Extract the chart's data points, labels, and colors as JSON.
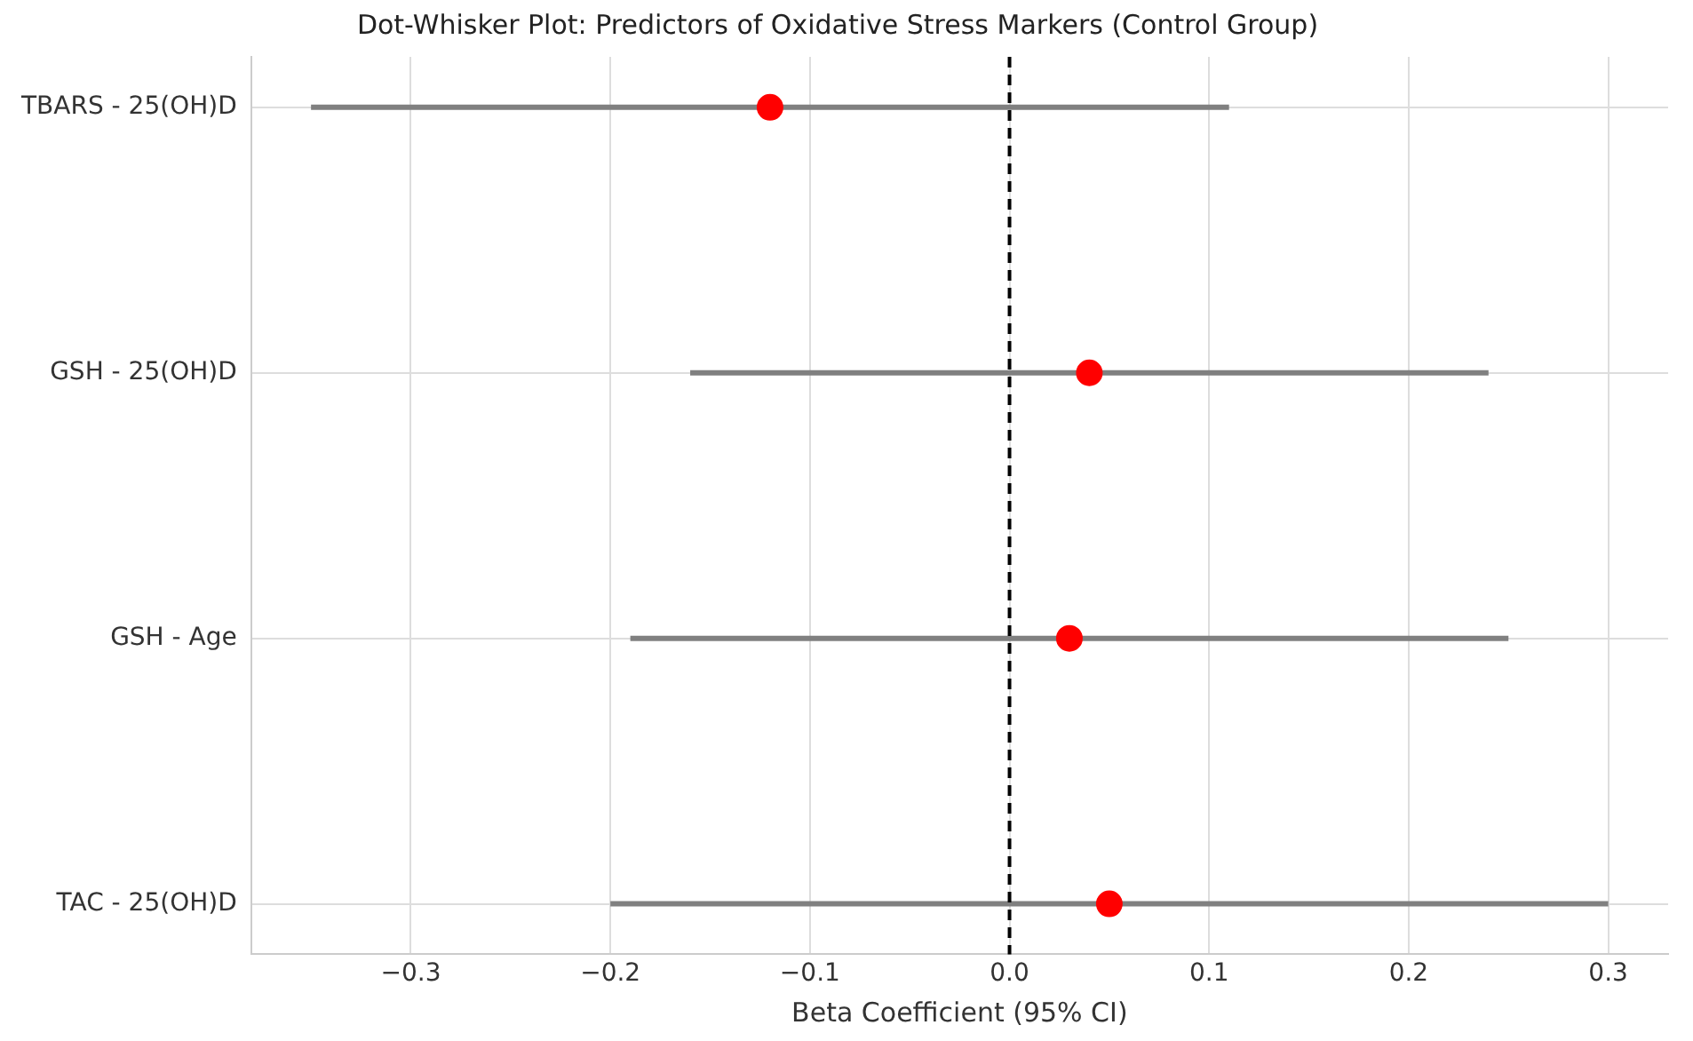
{
  "chart_data": {
    "type": "scatter",
    "orientation": "horizontal",
    "title": "Dot-Whisker Plot: Predictors of Oxidative Stress Markers (Control Group)",
    "xlabel": "Beta Coefficient (95% CI)",
    "categories": [
      "TBARS - 25(OH)D",
      "GSH - 25(OH)D",
      "GSH - Age",
      "TAC - 25(OH)D"
    ],
    "series": [
      {
        "color": "#ff0000",
        "values": [
          -0.12,
          0.04,
          0.03,
          0.05
        ],
        "errors": [
          [
            -0.35,
            0.11
          ],
          [
            -0.16,
            0.24
          ],
          [
            -0.19,
            0.25
          ],
          [
            -0.2,
            0.3
          ]
        ]
      }
    ],
    "xlim": [
      -0.38,
      0.33
    ],
    "xticks": [
      {
        "value": -0.3,
        "label": "−0.3"
      },
      {
        "value": -0.2,
        "label": "−0.2"
      },
      {
        "value": -0.1,
        "label": "−0.1"
      },
      {
        "value": 0,
        "label": "0.0"
      },
      {
        "value": 0.1,
        "label": "0.1"
      },
      {
        "value": 0.2,
        "label": "0.2"
      },
      {
        "value": 0.3,
        "label": "0.3"
      }
    ],
    "ref_lines": [
      {
        "axis": "x",
        "value": 0,
        "color": "#000000",
        "line_style": "dashed"
      }
    ],
    "grid": true,
    "marker": "circle"
  }
}
